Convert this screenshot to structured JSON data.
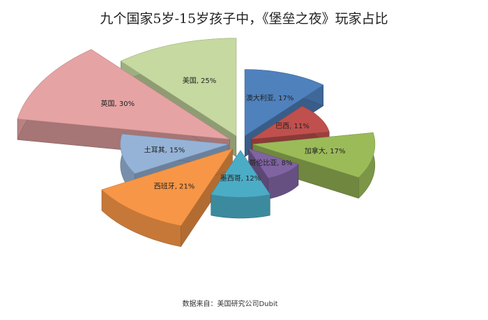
{
  "chart_data": {
    "type": "pie3d",
    "title": "九个国家5岁-15岁孩子中，《堡垒之夜》玩家占比",
    "source": "数据来自：美国研究公司Dubit",
    "values": [
      17,
      11,
      17,
      8,
      12,
      21,
      15,
      30,
      25
    ],
    "value_labels": [
      "澳大利亚, 17%",
      "巴西, 11%",
      "加拿大, 17%",
      "哥伦比亚, 8%",
      "墨西哥, 12%",
      "西班牙, 21%",
      "土耳其, 15%",
      "英国, 30%",
      "美国, 25%"
    ],
    "colors": [
      "#4f81bd",
      "#c0504d",
      "#9bbb59",
      "#8064a2",
      "#4bacc6",
      "#f79646",
      "#95b3d7",
      "#e6a3a3",
      "#c6d9a0"
    ]
  }
}
